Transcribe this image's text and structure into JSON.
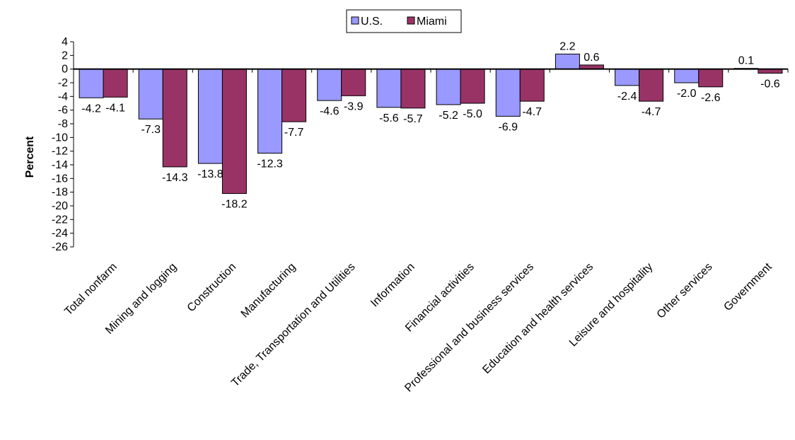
{
  "chart_data": {
    "type": "bar",
    "ylabel": "Percent",
    "ylim": [
      -26,
      4
    ],
    "ytick_step": 2,
    "legend_position": "top-center",
    "categories": [
      "Total nonfarm",
      "Mining and logging",
      "Construction",
      "Manufacturing",
      "Trade, Transportation and Utilities",
      "Information",
      "Financial activities",
      "Professional and business services",
      "Education and health services",
      "Leisure and hospitality",
      "Other services",
      "Government"
    ],
    "series": [
      {
        "name": "U.S.",
        "color": "#9999FF",
        "values": [
          -4.2,
          -7.3,
          -13.8,
          -12.3,
          -4.6,
          -5.6,
          -5.2,
          -6.9,
          2.2,
          -2.4,
          -2.0,
          0.1
        ]
      },
      {
        "name": "Miami",
        "color": "#993366",
        "values": [
          -4.1,
          -14.3,
          -18.2,
          -7.7,
          -3.9,
          -5.7,
          -5.0,
          -4.7,
          0.6,
          -4.7,
          -2.6,
          -0.6
        ]
      }
    ]
  }
}
